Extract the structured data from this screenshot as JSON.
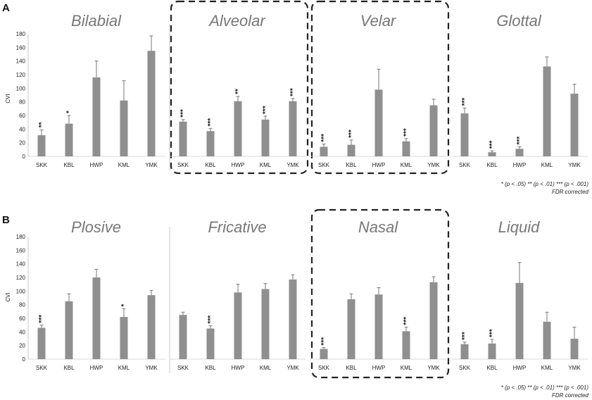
{
  "chart_data": [
    {
      "panel": "A",
      "type": "bar",
      "ylabel": "CVI",
      "ylim": [
        0,
        180
      ],
      "yticks": [
        0,
        20,
        40,
        60,
        80,
        100,
        120,
        140,
        160,
        180
      ],
      "categories": [
        "SKK",
        "KBL",
        "HWP",
        "KML",
        "YMK"
      ],
      "bar_color": "#8f8f8f",
      "subplots": [
        {
          "title": "Bilabial",
          "highlighted": false,
          "values": [
            31,
            48,
            116,
            82,
            155
          ],
          "errors": [
            8,
            12,
            24,
            29,
            22
          ],
          "sig": [
            "**",
            "*",
            "",
            "",
            ""
          ]
        },
        {
          "title": "Alveolar",
          "highlighted": true,
          "values": [
            51,
            37,
            81,
            54,
            81
          ],
          "errors": [
            3,
            4,
            7,
            5,
            4
          ],
          "sig": [
            "***",
            "***",
            "**",
            "***",
            "***"
          ]
        },
        {
          "title": "Velar",
          "highlighted": true,
          "values": [
            14,
            17,
            98,
            22,
            75
          ],
          "errors": [
            4,
            7,
            30,
            4,
            9
          ],
          "sig": [
            "***",
            "***",
            "",
            "***",
            ""
          ]
        },
        {
          "title": "Glottal",
          "highlighted": false,
          "values": [
            63,
            6,
            11,
            132,
            92
          ],
          "errors": [
            8,
            2,
            3,
            14,
            14
          ],
          "sig": [
            "***",
            "***",
            "***",
            "",
            ""
          ]
        }
      ],
      "legend_line1": "* (p < .05)  ** (p < .01)  *** (p < .001)",
      "legend_line2": "FDR corrected"
    },
    {
      "panel": "B",
      "type": "bar",
      "ylabel": "CVI",
      "ylim": [
        0,
        180
      ],
      "yticks": [
        0,
        20,
        40,
        60,
        80,
        100,
        120,
        140,
        160,
        180
      ],
      "categories": [
        "SKK",
        "KBL",
        "HWP",
        "KML",
        "YMK"
      ],
      "bar_color": "#8f8f8f",
      "subplots": [
        {
          "title": "Plosive",
          "highlighted": false,
          "values": [
            46,
            85,
            120,
            62,
            94
          ],
          "errors": [
            4,
            11,
            12,
            12,
            7
          ],
          "sig": [
            "***",
            "",
            "",
            "*",
            ""
          ]
        },
        {
          "title": "Fricative",
          "highlighted": false,
          "values": [
            65,
            45,
            98,
            103,
            117
          ],
          "errors": [
            4,
            4,
            12,
            8,
            7
          ],
          "sig": [
            "",
            "***",
            "",
            "",
            ""
          ]
        },
        {
          "title": "Nasal",
          "highlighted": true,
          "values": [
            15,
            88,
            95,
            41,
            113
          ],
          "errors": [
            2,
            8,
            10,
            6,
            8
          ],
          "sig": [
            "***",
            "",
            "",
            "***",
            ""
          ]
        },
        {
          "title": "Liquid",
          "highlighted": false,
          "values": [
            22,
            23,
            112,
            55,
            30
          ],
          "errors": [
            3,
            6,
            30,
            14,
            17
          ],
          "sig": [
            "***",
            "***",
            "",
            "",
            ""
          ]
        }
      ],
      "legend_line1": "* (p < .05)  ** (p < .01)  *** (p < .001)",
      "legend_line2": "FDR corrected"
    }
  ]
}
